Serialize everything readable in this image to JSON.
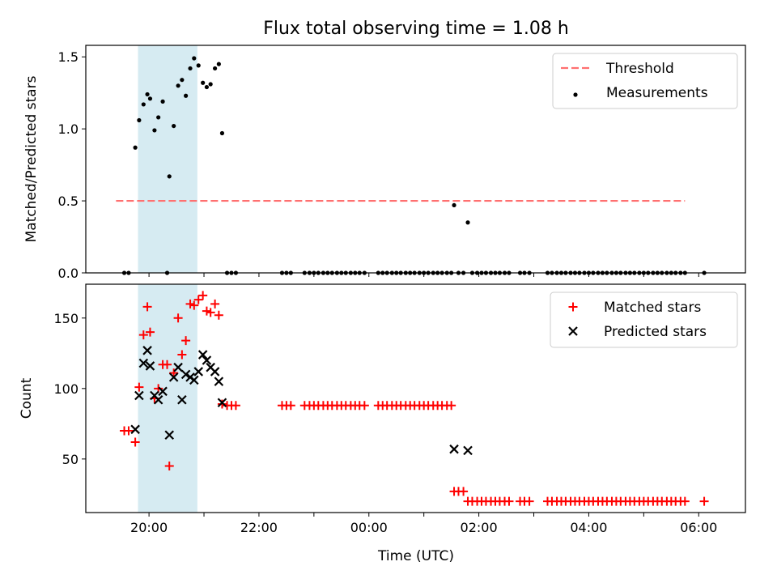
{
  "figure": {
    "title": "Flux total observing time = 1.08 h",
    "xlabel": "Time (UTC)",
    "x_ticks": [
      "20:00",
      "22:00",
      "00:00",
      "02:00",
      "04:00",
      "06:00"
    ]
  },
  "chart_data": [
    {
      "type": "scatter",
      "ylabel": "Matched/Predicted stars",
      "ylim": [
        0,
        1.58
      ],
      "y_ticks": [
        "0.0",
        "0.5",
        "1.0",
        "1.5"
      ],
      "x_unit": "hours since 18:00 UTC (axis ticks printed as clock times)",
      "xlim": [
        0.85,
        12.85
      ],
      "shaded_interval": [
        1.8,
        2.88
      ],
      "legend_position": "top-right",
      "series": [
        {
          "name": "Threshold",
          "kind": "dashed-line",
          "color": "#ff7070",
          "y": 0.5,
          "x_range": [
            1.4,
            11.75
          ]
        },
        {
          "name": "Measurements",
          "kind": "dots",
          "color": "#000000",
          "points": [
            [
              1.55,
              0
            ],
            [
              1.63,
              0
            ],
            [
              1.75,
              0.87
            ],
            [
              1.82,
              1.06
            ],
            [
              1.9,
              1.17
            ],
            [
              1.97,
              1.24
            ],
            [
              2.02,
              1.21
            ],
            [
              2.1,
              0.99
            ],
            [
              2.17,
              1.08
            ],
            [
              2.25,
              1.19
            ],
            [
              2.33,
              0
            ],
            [
              2.37,
              0.67
            ],
            [
              2.45,
              1.02
            ],
            [
              2.53,
              1.3
            ],
            [
              2.6,
              1.34
            ],
            [
              2.67,
              1.23
            ],
            [
              2.75,
              1.42
            ],
            [
              2.82,
              1.49
            ],
            [
              2.9,
              1.44
            ],
            [
              2.98,
              1.32
            ],
            [
              3.05,
              1.29
            ],
            [
              3.12,
              1.31
            ],
            [
              3.2,
              1.42
            ],
            [
              3.27,
              1.45
            ],
            [
              3.33,
              0.97
            ],
            [
              3.42,
              0
            ],
            [
              3.5,
              0
            ],
            [
              3.58,
              0
            ],
            [
              4.42,
              0
            ],
            [
              4.5,
              0
            ],
            [
              4.58,
              0
            ],
            [
              4.83,
              0
            ],
            [
              4.92,
              0
            ],
            [
              5.0,
              0
            ],
            [
              5.08,
              0
            ],
            [
              5.17,
              0
            ],
            [
              5.25,
              0
            ],
            [
              5.33,
              0
            ],
            [
              5.42,
              0
            ],
            [
              5.5,
              0
            ],
            [
              5.58,
              0
            ],
            [
              5.67,
              0
            ],
            [
              5.75,
              0
            ],
            [
              5.83,
              0
            ],
            [
              5.92,
              0
            ],
            [
              6.17,
              0
            ],
            [
              6.25,
              0
            ],
            [
              6.33,
              0
            ],
            [
              6.42,
              0
            ],
            [
              6.5,
              0
            ],
            [
              6.58,
              0
            ],
            [
              6.67,
              0
            ],
            [
              6.75,
              0
            ],
            [
              6.83,
              0
            ],
            [
              6.92,
              0
            ],
            [
              7.0,
              0
            ],
            [
              7.08,
              0
            ],
            [
              7.17,
              0
            ],
            [
              7.25,
              0
            ],
            [
              7.33,
              0
            ],
            [
              7.42,
              0
            ],
            [
              7.5,
              0
            ],
            [
              7.55,
              0.47
            ],
            [
              7.63,
              0
            ],
            [
              7.72,
              0
            ],
            [
              7.8,
              0.35
            ],
            [
              7.88,
              0
            ],
            [
              7.97,
              0
            ],
            [
              8.05,
              0
            ],
            [
              8.13,
              0
            ],
            [
              8.22,
              0
            ],
            [
              8.3,
              0
            ],
            [
              8.38,
              0
            ],
            [
              8.47,
              0
            ],
            [
              8.55,
              0
            ],
            [
              8.75,
              0
            ],
            [
              8.83,
              0
            ],
            [
              8.92,
              0
            ],
            [
              9.25,
              0
            ],
            [
              9.33,
              0
            ],
            [
              9.42,
              0
            ],
            [
              9.5,
              0
            ],
            [
              9.58,
              0
            ],
            [
              9.67,
              0
            ],
            [
              9.75,
              0
            ],
            [
              9.83,
              0
            ],
            [
              9.92,
              0
            ],
            [
              10.0,
              0
            ],
            [
              10.08,
              0
            ],
            [
              10.17,
              0
            ],
            [
              10.25,
              0
            ],
            [
              10.33,
              0
            ],
            [
              10.42,
              0
            ],
            [
              10.5,
              0
            ],
            [
              10.58,
              0
            ],
            [
              10.67,
              0
            ],
            [
              10.75,
              0
            ],
            [
              10.83,
              0
            ],
            [
              10.92,
              0
            ],
            [
              11.0,
              0
            ],
            [
              11.08,
              0
            ],
            [
              11.17,
              0
            ],
            [
              11.25,
              0
            ],
            [
              11.33,
              0
            ],
            [
              11.42,
              0
            ],
            [
              11.5,
              0
            ],
            [
              11.58,
              0
            ],
            [
              11.67,
              0
            ],
            [
              11.75,
              0
            ],
            [
              12.1,
              0
            ]
          ]
        }
      ]
    },
    {
      "type": "scatter",
      "ylabel": "Count",
      "ylim": [
        12,
        174
      ],
      "y_ticks": [
        "50",
        "100",
        "150"
      ],
      "x_unit": "hours since 18:00 UTC (axis ticks printed as clock times)",
      "xlim": [
        0.85,
        12.85
      ],
      "shaded_interval": [
        1.8,
        2.88
      ],
      "legend_position": "top-right",
      "series": [
        {
          "name": "Matched stars",
          "kind": "plus",
          "color": "#ff0000",
          "points": [
            [
              1.55,
              70
            ],
            [
              1.63,
              70
            ],
            [
              1.75,
              62
            ],
            [
              1.82,
              101
            ],
            [
              1.9,
              138
            ],
            [
              1.97,
              158
            ],
            [
              2.02,
              140
            ],
            [
              2.1,
              93
            ],
            [
              2.17,
              100
            ],
            [
              2.25,
              117
            ],
            [
              2.33,
              117
            ],
            [
              2.37,
              45
            ],
            [
              2.45,
              111
            ],
            [
              2.53,
              150
            ],
            [
              2.6,
              124
            ],
            [
              2.67,
              134
            ],
            [
              2.75,
              160
            ],
            [
              2.82,
              159
            ],
            [
              2.9,
              163
            ],
            [
              2.98,
              166
            ],
            [
              3.05,
              155
            ],
            [
              3.12,
              154
            ],
            [
              3.2,
              160
            ],
            [
              3.27,
              152
            ],
            [
              3.33,
              89
            ],
            [
              3.42,
              88
            ],
            [
              3.5,
              88
            ],
            [
              3.58,
              88
            ],
            [
              4.42,
              88
            ],
            [
              4.5,
              88
            ],
            [
              4.58,
              88
            ],
            [
              4.83,
              88
            ],
            [
              4.92,
              88
            ],
            [
              5.0,
              88
            ],
            [
              5.08,
              88
            ],
            [
              5.17,
              88
            ],
            [
              5.25,
              88
            ],
            [
              5.33,
              88
            ],
            [
              5.42,
              88
            ],
            [
              5.5,
              88
            ],
            [
              5.58,
              88
            ],
            [
              5.67,
              88
            ],
            [
              5.75,
              88
            ],
            [
              5.83,
              88
            ],
            [
              5.92,
              88
            ],
            [
              6.17,
              88
            ],
            [
              6.25,
              88
            ],
            [
              6.33,
              88
            ],
            [
              6.42,
              88
            ],
            [
              6.5,
              88
            ],
            [
              6.58,
              88
            ],
            [
              6.67,
              88
            ],
            [
              6.75,
              88
            ],
            [
              6.83,
              88
            ],
            [
              6.92,
              88
            ],
            [
              7.0,
              88
            ],
            [
              7.08,
              88
            ],
            [
              7.17,
              88
            ],
            [
              7.25,
              88
            ],
            [
              7.33,
              88
            ],
            [
              7.42,
              88
            ],
            [
              7.5,
              88
            ],
            [
              7.55,
              27
            ],
            [
              7.63,
              27
            ],
            [
              7.72,
              27
            ],
            [
              7.8,
              20
            ],
            [
              7.88,
              20
            ],
            [
              7.97,
              20
            ],
            [
              8.05,
              20
            ],
            [
              8.13,
              20
            ],
            [
              8.22,
              20
            ],
            [
              8.3,
              20
            ],
            [
              8.38,
              20
            ],
            [
              8.47,
              20
            ],
            [
              8.55,
              20
            ],
            [
              8.75,
              20
            ],
            [
              8.83,
              20
            ],
            [
              8.92,
              20
            ],
            [
              9.25,
              20
            ],
            [
              9.33,
              20
            ],
            [
              9.42,
              20
            ],
            [
              9.5,
              20
            ],
            [
              9.58,
              20
            ],
            [
              9.67,
              20
            ],
            [
              9.75,
              20
            ],
            [
              9.83,
              20
            ],
            [
              9.92,
              20
            ],
            [
              10.0,
              20
            ],
            [
              10.08,
              20
            ],
            [
              10.17,
              20
            ],
            [
              10.25,
              20
            ],
            [
              10.33,
              20
            ],
            [
              10.42,
              20
            ],
            [
              10.5,
              20
            ],
            [
              10.58,
              20
            ],
            [
              10.67,
              20
            ],
            [
              10.75,
              20
            ],
            [
              10.83,
              20
            ],
            [
              10.92,
              20
            ],
            [
              11.0,
              20
            ],
            [
              11.08,
              20
            ],
            [
              11.17,
              20
            ],
            [
              11.25,
              20
            ],
            [
              11.33,
              20
            ],
            [
              11.42,
              20
            ],
            [
              11.5,
              20
            ],
            [
              11.58,
              20
            ],
            [
              11.67,
              20
            ],
            [
              11.75,
              20
            ],
            [
              12.1,
              20
            ]
          ]
        },
        {
          "name": "Predicted stars",
          "kind": "x",
          "color": "#000000",
          "points": [
            [
              1.75,
              71
            ],
            [
              1.82,
              95
            ],
            [
              1.9,
              118
            ],
            [
              1.97,
              127
            ],
            [
              2.02,
              116
            ],
            [
              2.1,
              95
            ],
            [
              2.17,
              92
            ],
            [
              2.25,
              98
            ],
            [
              2.37,
              67
            ],
            [
              2.45,
              108
            ],
            [
              2.53,
              115
            ],
            [
              2.6,
              92
            ],
            [
              2.67,
              110
            ],
            [
              2.75,
              108
            ],
            [
              2.82,
              106
            ],
            [
              2.9,
              112
            ],
            [
              2.98,
              124
            ],
            [
              3.05,
              120
            ],
            [
              3.12,
              115
            ],
            [
              3.2,
              112
            ],
            [
              3.27,
              105
            ],
            [
              3.33,
              90
            ],
            [
              7.55,
              57
            ],
            [
              7.8,
              56
            ]
          ]
        }
      ]
    }
  ]
}
